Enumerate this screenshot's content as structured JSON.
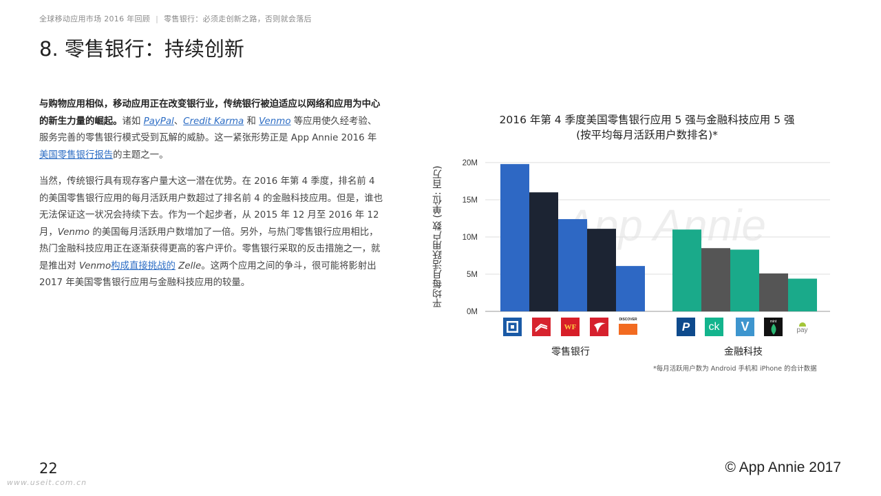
{
  "header": {
    "breadcrumb_main": "全球移动应用市场 2016 年回顾",
    "breadcrumb_separator": "|",
    "breadcrumb_section": "零售银行：必须走创新之路，否则就会落后",
    "title": "8. 零售银行：持续创新"
  },
  "body": {
    "p1_lead": "与购物应用相似，移动应用正在改变银行业，传统银行被迫适应以网络和应用为中心的新生力量的崛起。",
    "p1_text_a": "诸如 ",
    "p1_link_paypal": "PayPal",
    "p1_text_b": "、",
    "p1_link_ck": "Credit Karma",
    "p1_text_c": " 和 ",
    "p1_link_venmo": "Venmo",
    "p1_text_d": " 等应用使久经考验、服务完善的零售银行模式受到瓦解的威胁。这一紧张形势正是 App Annie 2016 年",
    "p1_link_report": "美国零售银行报告",
    "p1_text_e": "的主题之一。",
    "p2_text_a": "当然，传统银行具有现存客户量大这一潜在优势。在 2016 年第 4 季度，排名前 4 的美国零售银行应用的每月活跃用户数超过了排名前 4 的金融科技应用。但是，谁也无法保证这一状况会持续下去。作为一个起步者，从 2015 年 12 月至 2016 年 12 月，",
    "p2_venmo": "Venmo",
    "p2_text_b": " 的美国每月活跃用户数增加了一倍。另外，与热门零售银行应用相比，热门金融科技应用正在逐渐获得更高的客户评价。零售银行采取的反击措施之一，就是推出对 ",
    "p2_venmo2": "Venmo",
    "p2_link_challenge": "构成直接挑战的",
    "p2_text_c": " ",
    "p2_zelle": "Zelle",
    "p2_text_d": "。这两个应用之间的争斗，很可能将影射出 2017 年美国零售银行应用与金融科技应用的较量。"
  },
  "chart_data": {
    "type": "bar",
    "title": "2016 年第 4 季度美国零售银行应用 5 强与金融科技应用 5 强",
    "subtitle": "(按平均每月活跃用户数排名)*",
    "ylabel": "平均每月活跃用户数 (单位: 百万)",
    "ylim": [
      0,
      20
    ],
    "yticks": [
      "0M",
      "5M",
      "10M",
      "15M",
      "20M"
    ],
    "grid": true,
    "watermark": "App Annie",
    "footnote": "*每月活跃用户数为 Android 手机和 iPhone 的合计数据",
    "groups": [
      {
        "name": "零售银行",
        "bars": [
          {
            "app": "Chase",
            "value": 19.8,
            "color": "#2e68c4",
            "icon": "chase-logo-icon"
          },
          {
            "app": "Bank of America",
            "value": 16.0,
            "color": "#1c2433",
            "icon": "bank-of-america-logo-icon"
          },
          {
            "app": "Wells Fargo",
            "value": 12.4,
            "color": "#2e68c4",
            "icon": "wells-fargo-logo-icon"
          },
          {
            "app": "Capital One",
            "value": 11.1,
            "color": "#1c2433",
            "icon": "capital-one-logo-icon"
          },
          {
            "app": "Discover",
            "value": 6.1,
            "color": "#2e68c4",
            "icon": "discover-logo-icon"
          }
        ]
      },
      {
        "name": "金融科技",
        "bars": [
          {
            "app": "PayPal",
            "value": 11.0,
            "color": "#1aaa8a",
            "icon": "paypal-logo-icon"
          },
          {
            "app": "Credit Karma",
            "value": 8.5,
            "color": "#555555",
            "icon": "credit-karma-logo-icon"
          },
          {
            "app": "Venmo",
            "value": 8.3,
            "color": "#1aaa8a",
            "icon": "venmo-logo-icon"
          },
          {
            "app": "Mint",
            "value": 5.1,
            "color": "#555555",
            "icon": "mint-logo-icon"
          },
          {
            "app": "Android Pay",
            "value": 4.4,
            "color": "#1aaa8a",
            "icon": "android-pay-logo-icon"
          }
        ]
      }
    ]
  },
  "logos": {
    "chase": "",
    "bofa": "",
    "wf": "WF",
    "capital_one": "",
    "discover": "DISCOVER",
    "paypal": "P",
    "ck": "ck",
    "venmo": "V",
    "mint": "mint",
    "android_pay": "pay"
  },
  "footer": {
    "page_number": "22",
    "copyright": "© App Annie 2017",
    "watermark_url": "www.useit.com.cn"
  }
}
